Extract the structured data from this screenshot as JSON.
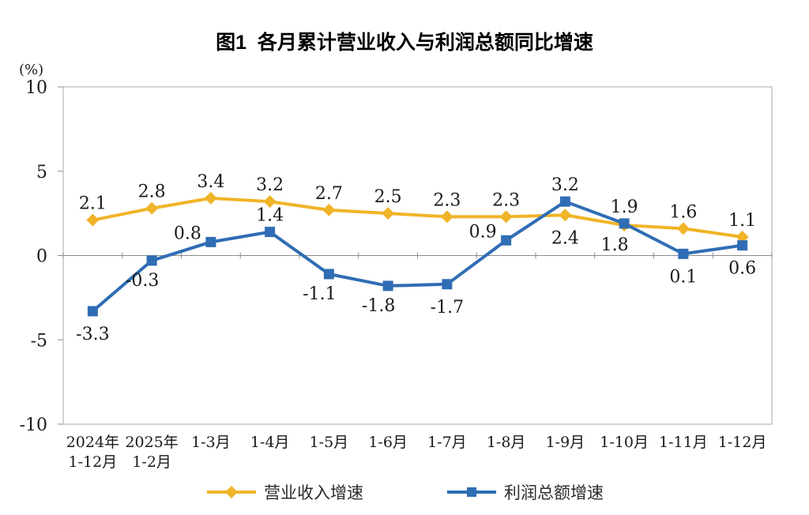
{
  "chart_data": {
    "type": "line",
    "title": "图1  各月累计营业收入与利润总额同比增速",
    "unit_label": "(%)",
    "categories": [
      [
        "2024年",
        "1-12月"
      ],
      [
        "2025年",
        "1-2月"
      ],
      [
        "1-3月"
      ],
      [
        "1-4月"
      ],
      [
        "1-5月"
      ],
      [
        "1-6月"
      ],
      [
        "1-7月"
      ],
      [
        "1-8月"
      ],
      [
        "1-9月"
      ],
      [
        "1-10月"
      ],
      [
        "1-11月"
      ],
      [
        "1-12月"
      ]
    ],
    "series": [
      {
        "id": "revenue-growth",
        "name": "营业收入增速",
        "color": "#F0B428",
        "marker": "diamond",
        "values": [
          2.1,
          2.8,
          3.4,
          3.2,
          2.7,
          2.5,
          2.3,
          2.3,
          2.4,
          1.8,
          1.6,
          1.1
        ],
        "label_pos": [
          "a",
          "a",
          "a",
          "a",
          "a",
          "a",
          "a",
          "a",
          "b",
          "bl",
          "a",
          "a"
        ]
      },
      {
        "id": "profit-growth",
        "name": "利润总额增速",
        "color": "#2F6DB4",
        "marker": "square",
        "values": [
          -3.3,
          -0.3,
          0.8,
          1.4,
          -1.1,
          -1.8,
          -1.7,
          0.9,
          3.2,
          1.9,
          0.1,
          0.6
        ],
        "label_pos": [
          "b",
          "bl",
          "al",
          "a",
          "bl",
          "bl",
          "b",
          "al",
          "a",
          "a",
          "b",
          "b"
        ]
      }
    ],
    "ylim": [
      -10,
      10
    ],
    "yticks": [
      10,
      5,
      0,
      -5,
      -10
    ],
    "grid": false,
    "legend_position": "bottom",
    "colors": {
      "axis": "#8c8c8c",
      "border": "#b3b9bf",
      "text": "#1a1a1a"
    }
  }
}
